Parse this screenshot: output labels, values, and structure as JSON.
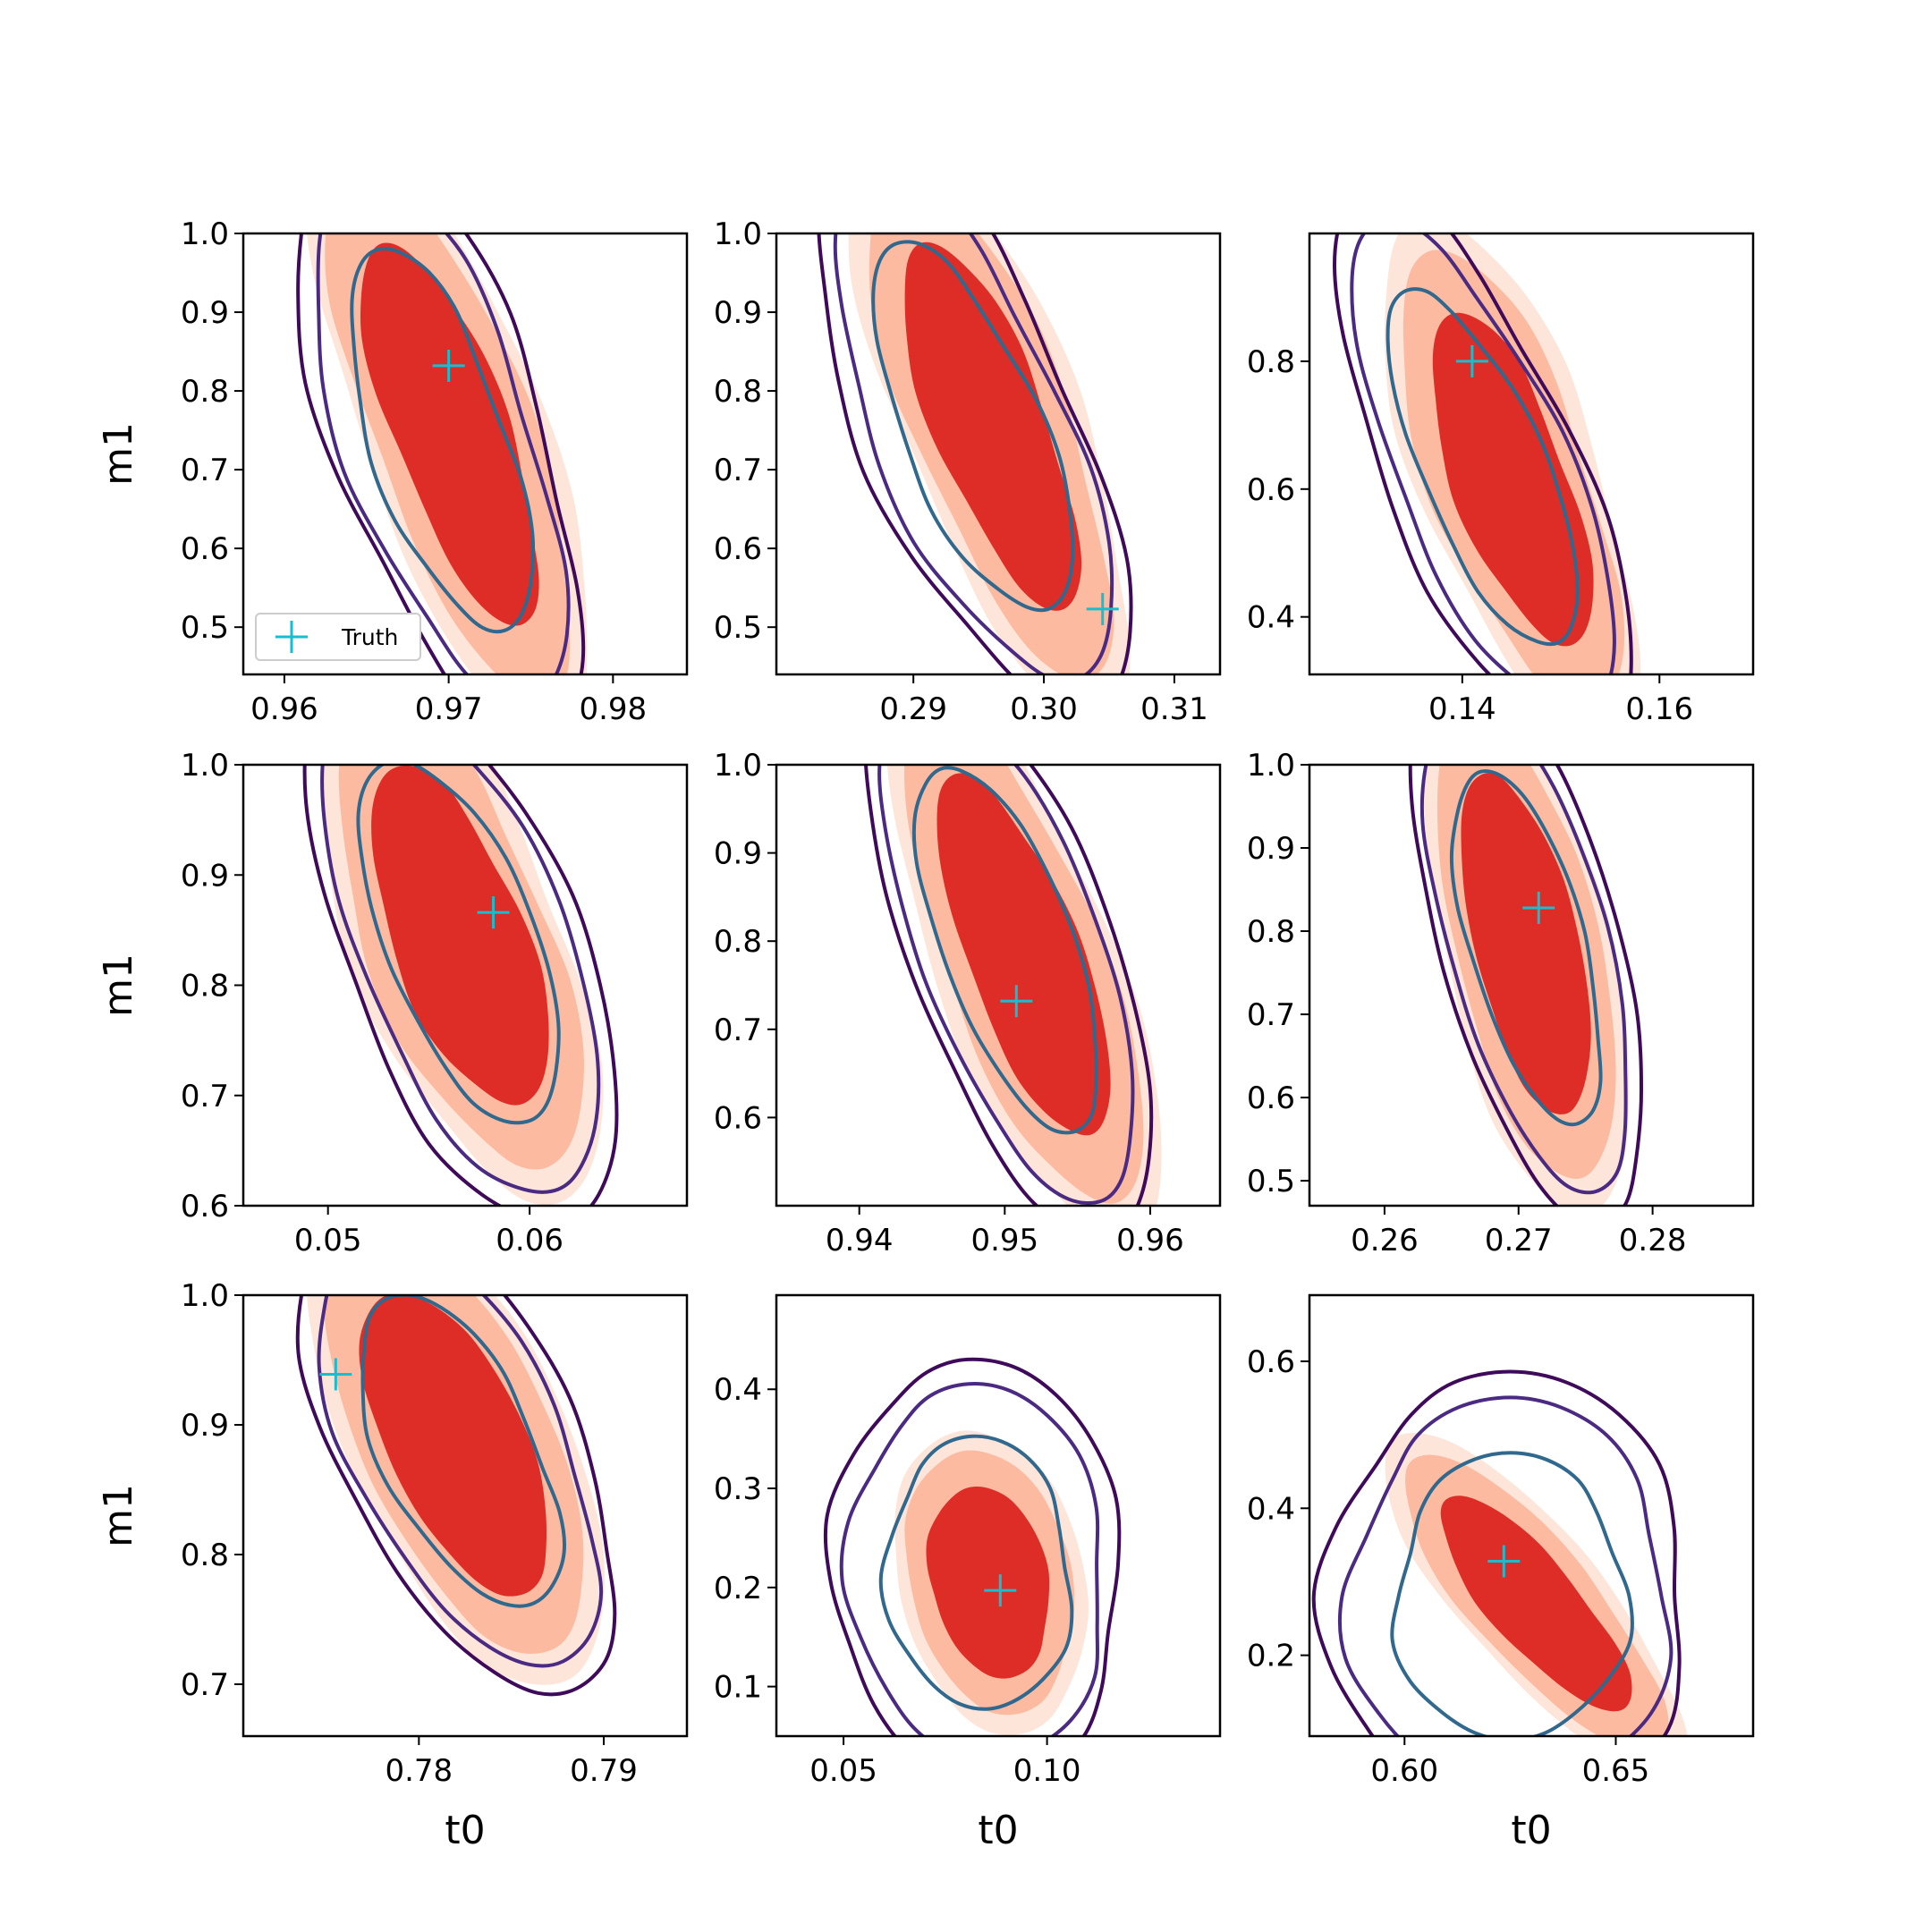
{
  "figure": {
    "legend": {
      "label": "Truth",
      "marker_color": "#17becf"
    }
  },
  "colors": {
    "fill_outer": "#fee5d9",
    "fill_mid": "#fcbba1",
    "fill_inner": "#de2d26",
    "contour_outer": "#3f0a5a",
    "contour_mid": "#4a2a82",
    "contour_inner": "#31688e",
    "truth_marker": "#17becf"
  },
  "chart_data": [
    {
      "type": "contour",
      "row": 0,
      "col": 0,
      "xlabel": "",
      "ylabel": "m1",
      "xlim": [
        0.9575,
        0.9845
      ],
      "ylim": [
        0.44,
        1.0
      ],
      "xticks": [
        0.96,
        0.97,
        0.98
      ],
      "xtick_labels": [
        "0.96",
        "0.97",
        "0.98"
      ],
      "yticks": [
        0.5,
        0.6,
        0.7,
        0.8,
        0.9,
        1.0
      ],
      "ytick_labels": [
        "0.5",
        "0.6",
        "0.7",
        "0.8",
        "0.9",
        "1.0"
      ],
      "truth": [
        0.97,
        0.832
      ],
      "legend": true,
      "posterior_red": {
        "top": [
          0.9658,
          0.99
        ],
        "bottom": [
          0.9745,
          0.5
        ],
        "width": 0.0085
      },
      "posterior_purple": {
        "top": [
          0.9655,
          0.985
        ],
        "bottom": [
          0.9735,
          0.49
        ],
        "width": 0.0105
      }
    },
    {
      "type": "contour",
      "row": 0,
      "col": 1,
      "xlabel": "",
      "ylabel": "",
      "xlim": [
        0.2795,
        0.3135
      ],
      "ylim": [
        0.44,
        1.0
      ],
      "xticks": [
        0.29,
        0.3,
        0.31
      ],
      "xtick_labels": [
        "0.29",
        "0.30",
        "0.31"
      ],
      "yticks": [
        0.5,
        0.6,
        0.7,
        0.8,
        0.9,
        1.0
      ],
      "ytick_labels": [
        "0.5",
        "0.6",
        "0.7",
        "0.8",
        "0.9",
        "1.0"
      ],
      "truth": [
        0.3045,
        0.523
      ],
      "legend": false,
      "posterior_red": {
        "top": [
          0.2905,
          0.99
        ],
        "bottom": [
          0.3015,
          0.52
        ],
        "width": 0.0105
      },
      "posterior_purple": {
        "top": [
          0.2885,
          0.99
        ],
        "bottom": [
          0.3005,
          0.52
        ],
        "width": 0.0135
      }
    },
    {
      "type": "contour",
      "row": 0,
      "col": 2,
      "xlabel": "",
      "ylabel": "",
      "xlim": [
        0.1245,
        0.1695
      ],
      "ylim": [
        0.31,
        1.0
      ],
      "xticks": [
        0.14,
        0.16
      ],
      "xtick_labels": [
        "0.14",
        "0.16"
      ],
      "yticks": [
        0.4,
        0.6,
        0.8
      ],
      "ytick_labels": [
        "0.4",
        "0.6",
        "0.8"
      ],
      "truth": [
        0.141,
        0.8
      ],
      "legend": false,
      "posterior_red": {
        "top": [
          0.139,
          0.87
        ],
        "bottom": [
          0.151,
          0.36
        ],
        "width": 0.014
      },
      "posterior_purple": {
        "top": [
          0.134,
          0.92
        ],
        "bottom": [
          0.15,
          0.35
        ],
        "width": 0.016
      }
    },
    {
      "type": "contour",
      "row": 1,
      "col": 0,
      "xlabel": "",
      "ylabel": "m1",
      "xlim": [
        0.0458,
        0.0678
      ],
      "ylim": [
        0.6,
        1.0
      ],
      "xticks": [
        0.05,
        0.06
      ],
      "xtick_labels": [
        "0.05",
        "0.06"
      ],
      "yticks": [
        0.6,
        0.7,
        0.8,
        0.9,
        1.0
      ],
      "ytick_labels": [
        "0.6",
        "0.7",
        "0.8",
        "0.9",
        "1.0"
      ],
      "truth": [
        0.0582,
        0.866
      ],
      "legend": false,
      "posterior_red": {
        "top": [
          0.0535,
          0.99
        ],
        "bottom": [
          0.0595,
          0.7
        ],
        "width": 0.008
      },
      "posterior_purple": {
        "top": [
          0.053,
          1.0
        ],
        "bottom": [
          0.06,
          0.68
        ],
        "width": 0.0095
      }
    },
    {
      "type": "contour",
      "row": 1,
      "col": 1,
      "xlabel": "",
      "ylabel": "",
      "xlim": [
        0.9343,
        0.9648
      ],
      "ylim": [
        0.5,
        1.0
      ],
      "xticks": [
        0.94,
        0.95,
        0.96
      ],
      "xtick_labels": [
        "0.94",
        "0.95",
        "0.96"
      ],
      "yticks": [
        0.6,
        0.7,
        0.8,
        0.9,
        1.0
      ],
      "ytick_labels": [
        "0.6",
        "0.7",
        "0.8",
        "0.9",
        "1.0"
      ],
      "truth": [
        0.9508,
        0.732
      ],
      "legend": false,
      "posterior_red": {
        "top": [
          0.9465,
          0.99
        ],
        "bottom": [
          0.956,
          0.58
        ],
        "width": 0.0095
      },
      "posterior_purple": {
        "top": [
          0.9455,
          1.0
        ],
        "bottom": [
          0.955,
          0.58
        ],
        "width": 0.0115
      }
    },
    {
      "type": "contour",
      "row": 1,
      "col": 2,
      "xlabel": "",
      "ylabel": "",
      "xlim": [
        0.2544,
        0.2875
      ],
      "ylim": [
        0.47,
        1.0
      ],
      "xticks": [
        0.26,
        0.27,
        0.28
      ],
      "xtick_labels": [
        "0.26",
        "0.27",
        "0.28"
      ],
      "yticks": [
        0.5,
        0.6,
        0.7,
        0.8,
        0.9,
        1.0
      ],
      "ytick_labels": [
        "0.5",
        "0.6",
        "0.7",
        "0.8",
        "0.9",
        "1.0"
      ],
      "truth": [
        0.2715,
        0.828
      ],
      "legend": false,
      "posterior_red": {
        "top": [
          0.2675,
          0.99
        ],
        "bottom": [
          0.2735,
          0.58
        ],
        "width": 0.0095
      },
      "posterior_purple": {
        "top": [
          0.267,
          1.0
        ],
        "bottom": [
          0.2745,
          0.56
        ],
        "width": 0.011
      }
    },
    {
      "type": "contour",
      "row": 2,
      "col": 0,
      "xlabel": "t0",
      "ylabel": "m1",
      "xlim": [
        0.7705,
        0.7945
      ],
      "ylim": [
        0.66,
        1.0
      ],
      "xticks": [
        0.78,
        0.79
      ],
      "xtick_labels": [
        "0.78",
        "0.79"
      ],
      "yticks": [
        0.7,
        0.8,
        0.9,
        1.0
      ],
      "ytick_labels": [
        "0.7",
        "0.8",
        "0.9",
        "1.0"
      ],
      "truth": [
        0.7755,
        0.939
      ],
      "legend": false,
      "posterior_red": {
        "top": [
          0.7785,
          0.99
        ],
        "bottom": [
          0.7855,
          0.78
        ],
        "width": 0.009
      },
      "posterior_purple": {
        "top": [
          0.7785,
          0.99
        ],
        "bottom": [
          0.786,
          0.77
        ],
        "width": 0.0105
      }
    },
    {
      "type": "contour",
      "row": 2,
      "col": 1,
      "xlabel": "t0",
      "ylabel": "",
      "xlim": [
        0.0335,
        0.1425
      ],
      "ylim": [
        0.05,
        0.495
      ],
      "xticks": [
        0.05,
        0.1
      ],
      "xtick_labels": [
        "0.05",
        "0.10"
      ],
      "yticks": [
        0.1,
        0.2,
        0.3,
        0.4
      ],
      "ytick_labels": [
        "0.1",
        "0.2",
        "0.3",
        "0.4"
      ],
      "truth": [
        0.0885,
        0.197
      ],
      "legend": false,
      "posterior_red": {
        "top": [
          0.082,
          0.28
        ],
        "bottom": [
          0.09,
          0.13
        ],
        "width": 0.035
      },
      "posterior_purple": {
        "top": [
          0.082,
          0.32
        ],
        "bottom": [
          0.085,
          0.11
        ],
        "width": 0.058
      }
    },
    {
      "type": "contour",
      "row": 2,
      "col": 2,
      "xlabel": "t0",
      "ylabel": "",
      "xlim": [
        0.5775,
        0.6825
      ],
      "ylim": [
        0.09,
        0.69
      ],
      "xticks": [
        0.6,
        0.65
      ],
      "xtick_labels": [
        "0.60",
        "0.65"
      ],
      "yticks": [
        0.2,
        0.4,
        0.6
      ],
      "ytick_labels": [
        "0.2",
        "0.4",
        "0.6"
      ],
      "truth": [
        0.6235,
        0.328
      ],
      "legend": false,
      "posterior_red": {
        "top": [
          0.61,
          0.41
        ],
        "bottom": [
          0.652,
          0.13
        ],
        "width": 0.025
      },
      "posterior_purple": {
        "top": [
          0.625,
          0.41
        ],
        "bottom": [
          0.625,
          0.15
        ],
        "width": 0.07
      }
    }
  ]
}
